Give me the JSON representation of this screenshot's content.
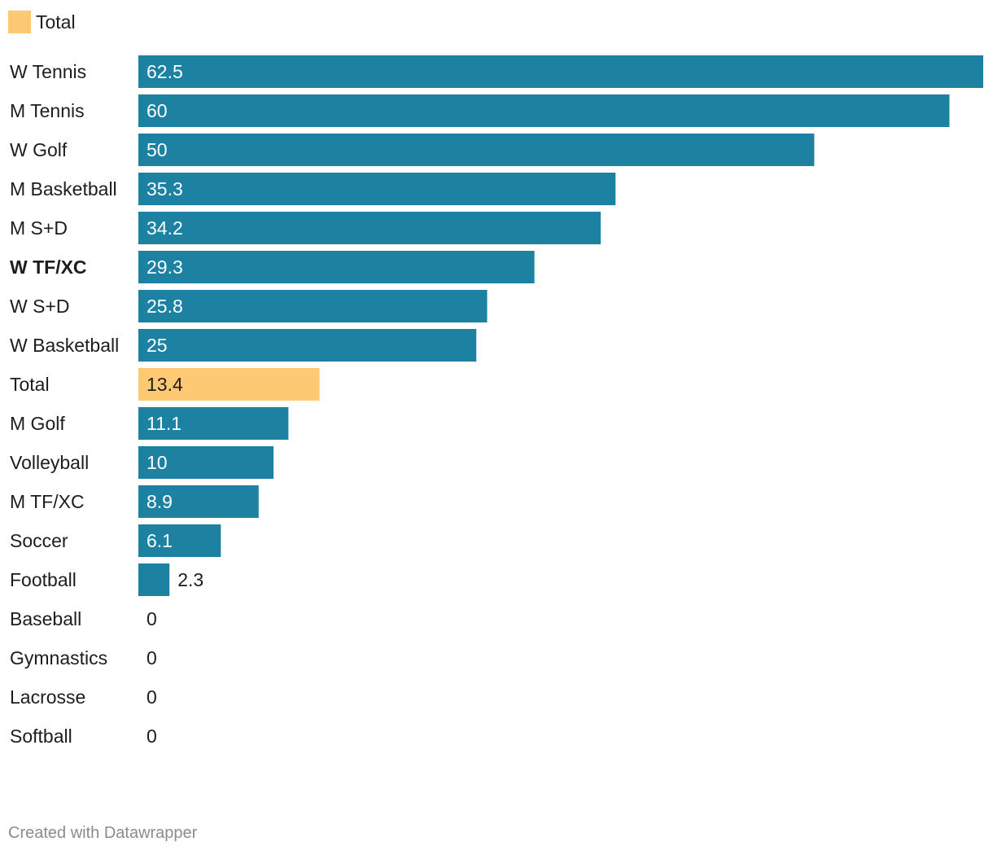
{
  "legend": {
    "items": [
      {
        "label": "Total",
        "color": "#ffc973"
      }
    ]
  },
  "footer": {
    "credit": "Created with Datawrapper"
  },
  "colors": {
    "bar": "#1d81a2",
    "highlight": "#ffc973",
    "text": "#1d1d1d",
    "label_inside": "#ffffff"
  },
  "chart_data": {
    "type": "bar",
    "orientation": "horizontal",
    "title": "",
    "xlabel": "",
    "ylabel": "",
    "xlim": [
      0,
      62.5
    ],
    "grid": false,
    "legend_position": "top-left",
    "categories": [
      "W Tennis",
      "M Tennis",
      "W Golf",
      "M Basketball",
      "M S+D",
      "W TF/XC",
      "W S+D",
      "W Basketball",
      "Total",
      "M Golf",
      "Volleyball",
      "M TF/XC",
      "Soccer",
      "Football",
      "Baseball",
      "Gymnastics",
      "Lacrosse",
      "Softball"
    ],
    "values": [
      62.5,
      60,
      50,
      35.3,
      34.2,
      29.3,
      25.8,
      25,
      13.4,
      11.1,
      10,
      8.9,
      6.1,
      2.3,
      0,
      0,
      0,
      0
    ],
    "value_labels": [
      "62.5",
      "60",
      "50",
      "35.3",
      "34.2",
      "29.3",
      "25.8",
      "25",
      "13.4",
      "11.1",
      "10",
      "8.9",
      "6.1",
      "2.3",
      "0",
      "0",
      "0",
      "0"
    ],
    "highlighted": [
      "Total"
    ],
    "bold_labels": [
      "W TF/XC"
    ]
  }
}
